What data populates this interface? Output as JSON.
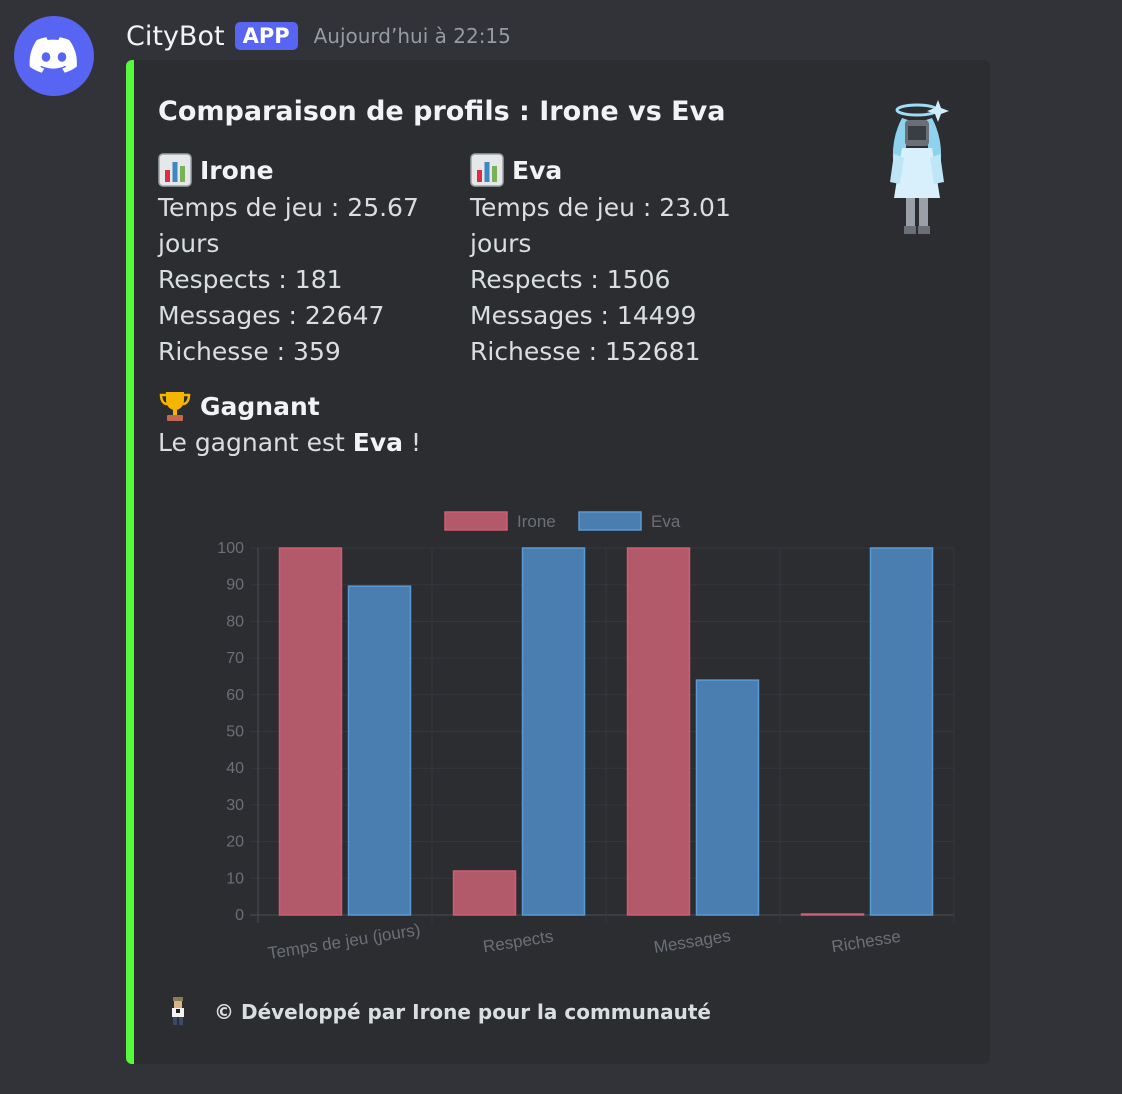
{
  "message": {
    "author": "CityBot",
    "badge": "APP",
    "timestamp": "Aujourd’hui à 22:15"
  },
  "embed": {
    "accent_color": "#57f93e",
    "title": "Comparaison de profils : Irone vs Eva",
    "fields": [
      {
        "icon": "bar-chart-icon",
        "name": "Irone",
        "lines": [
          "Temps de jeu : 25.67 jours",
          "Respects : 181",
          "Messages : 22647",
          "Richesse : 359"
        ]
      },
      {
        "icon": "bar-chart-icon",
        "name": "Eva",
        "lines": [
          "Temps de jeu : 23.01 jours",
          "Respects : 1506",
          "Messages : 14499",
          "Richesse : 152681"
        ]
      }
    ],
    "winner": {
      "icon": "trophy-icon",
      "title": "Gagnant",
      "prefix": "Le gagnant est ",
      "name": "Eva",
      "suffix": " !"
    },
    "footer": {
      "icon": "pixel-avatar-icon",
      "text": "© Développé par Irone pour la communauté"
    }
  },
  "chart_data": {
    "type": "bar",
    "categories": [
      "Temps de jeu (jours)",
      "Respects",
      "Messages",
      "Richesse"
    ],
    "series": [
      {
        "name": "Irone",
        "values": [
          100,
          12,
          100,
          0.2
        ],
        "color": "#b35a6a",
        "stroke": "#cf5c70"
      },
      {
        "name": "Eva",
        "values": [
          89.6,
          100,
          64,
          100
        ],
        "color": "#4a7eb0",
        "stroke": "#5a9ad4"
      }
    ],
    "ylim": [
      0,
      100
    ],
    "yticks": [
      0,
      10,
      20,
      30,
      40,
      50,
      60,
      70,
      80,
      90,
      100
    ],
    "legend": "top",
    "grid": true
  }
}
